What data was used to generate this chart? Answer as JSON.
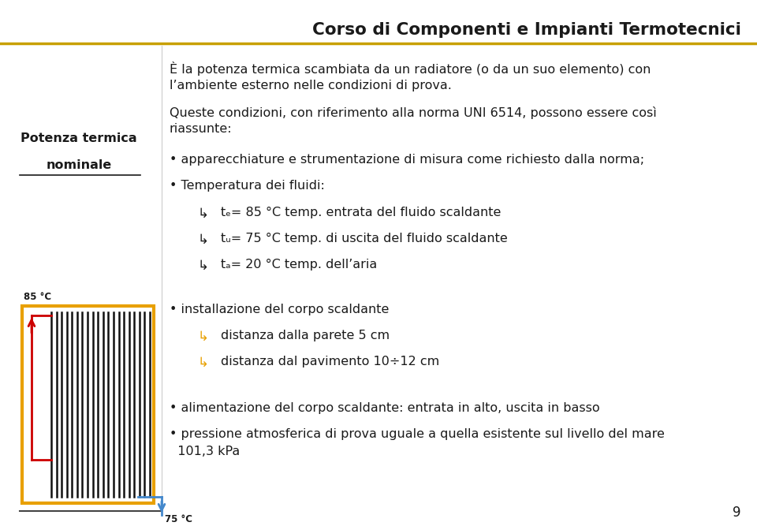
{
  "title": "Corso di Componenti e Impianti Termotecnici",
  "title_color": "#1a1a1a",
  "title_underline_color": "#c8a000",
  "bg_color": "#ffffff",
  "left_label_line1": "Potenza termica",
  "left_label_line2": "nominale",
  "text_color": "#1a1a1a",
  "orange_color": "#e8a000",
  "red_color": "#cc0000",
  "blue_color": "#4488cc",
  "paragraph1": "È la potenza termica scambiata da un radiatore (o da un suo elemento) con\nl’ambiente esterno nelle condizioni di prova.",
  "paragraph2_intro": "Queste condizioni, con riferimento alla norma UNI 6514, possono essere così\nriassunte:",
  "bullet1": "• apparecchiature e strumentazione di misura come richiesto dalla norma;",
  "bullet2": "• Temperatura dei fluidi:",
  "sub_sym": "↳",
  "sub1_text": "tₑ= 85 °C temp. entrata del fluido scaldante",
  "sub2_text": "tᵤ= 75 °C temp. di uscita del fluido scaldante",
  "sub3_text": "tₐ= 20 °C temp. dell’aria",
  "bullet3": "• installazione del corpo scaldante",
  "sub4_text": "distanza dalla parete 5 cm",
  "sub5_text": "distanza dal pavimento 10÷12 cm",
  "bullet4": "• alimentazione del corpo scaldante: entrata in alto, uscita in basso",
  "bullet5a": "• pressione atmosferica di prova uguale a quella esistente sul livello del mare",
  "bullet5b": "  101,3 kPa",
  "page_num": "9",
  "label_85": "85 °C",
  "label_75": "75 °C"
}
